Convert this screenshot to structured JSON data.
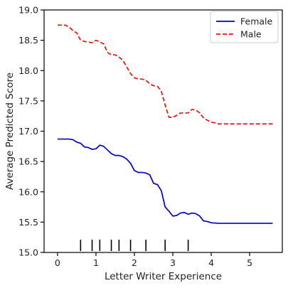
{
  "chart_data": {
    "type": "line",
    "xlabel": "Letter Writer Experience",
    "ylabel": "Average Predicted Score",
    "xlim": [
      -0.35,
      5.85
    ],
    "ylim": [
      15.0,
      19.0
    ],
    "xticks": [
      0,
      1,
      2,
      3,
      4,
      5
    ],
    "yticks": [
      15.0,
      15.5,
      16.0,
      16.5,
      17.0,
      17.5,
      18.0,
      18.5,
      19.0
    ],
    "grid": false,
    "legend_position": "top-right",
    "series": [
      {
        "name": "Female",
        "color": "#0000cc",
        "style": "solid",
        "x": [
          0.0,
          0.1,
          0.2,
          0.3,
          0.4,
          0.5,
          0.6,
          0.7,
          0.8,
          0.9,
          1.0,
          1.1,
          1.2,
          1.3,
          1.4,
          1.5,
          1.6,
          1.7,
          1.8,
          1.9,
          2.0,
          2.1,
          2.2,
          2.3,
          2.4,
          2.5,
          2.6,
          2.7,
          2.8,
          2.9,
          3.0,
          3.1,
          3.2,
          3.3,
          3.4,
          3.5,
          3.6,
          3.7,
          3.8,
          3.9,
          4.0,
          4.2,
          4.5,
          5.0,
          5.6
        ],
        "values": [
          16.87,
          16.87,
          16.87,
          16.87,
          16.86,
          16.82,
          16.8,
          16.74,
          16.73,
          16.7,
          16.71,
          16.77,
          16.75,
          16.69,
          16.63,
          16.6,
          16.6,
          16.58,
          16.54,
          16.47,
          16.35,
          16.32,
          16.32,
          16.31,
          16.28,
          16.14,
          16.12,
          16.02,
          15.75,
          15.68,
          15.6,
          15.61,
          15.65,
          15.66,
          15.63,
          15.65,
          15.64,
          15.6,
          15.52,
          15.51,
          15.49,
          15.48,
          15.48,
          15.48,
          15.48
        ]
      },
      {
        "name": "Male",
        "color": "#ee1111",
        "style": "dashed",
        "x": [
          0.0,
          0.1,
          0.2,
          0.3,
          0.4,
          0.5,
          0.6,
          0.7,
          0.8,
          0.9,
          1.0,
          1.1,
          1.2,
          1.3,
          1.4,
          1.5,
          1.6,
          1.7,
          1.8,
          1.9,
          2.0,
          2.1,
          2.2,
          2.3,
          2.4,
          2.5,
          2.6,
          2.7,
          2.8,
          2.9,
          3.0,
          3.1,
          3.2,
          3.3,
          3.4,
          3.5,
          3.6,
          3.7,
          3.8,
          3.9,
          4.0,
          4.2,
          4.5,
          5.0,
          5.6
        ],
        "values": [
          18.75,
          18.75,
          18.75,
          18.72,
          18.66,
          18.62,
          18.5,
          18.48,
          18.47,
          18.46,
          18.5,
          18.47,
          18.44,
          18.3,
          18.26,
          18.26,
          18.22,
          18.17,
          18.06,
          17.95,
          17.88,
          17.86,
          17.86,
          17.84,
          17.78,
          17.75,
          17.74,
          17.66,
          17.43,
          17.23,
          17.23,
          17.26,
          17.3,
          17.3,
          17.3,
          17.36,
          17.35,
          17.3,
          17.22,
          17.18,
          17.15,
          17.12,
          17.12,
          17.12,
          17.12
        ]
      }
    ],
    "rug_x": [
      0.6,
      0.9,
      1.1,
      1.4,
      1.6,
      1.9,
      2.3,
      2.8,
      3.4
    ]
  }
}
